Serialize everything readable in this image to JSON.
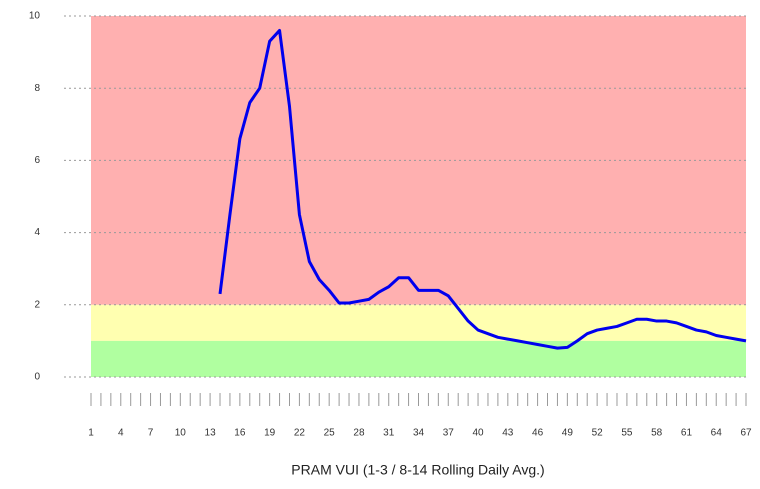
{
  "chart_data": {
    "type": "line",
    "title": "PRAM VUI (1-3 / 8-14 Rolling Daily Avg.)",
    "x": [
      1,
      2,
      3,
      4,
      5,
      6,
      7,
      8,
      9,
      10,
      11,
      12,
      13,
      14,
      15,
      16,
      17,
      18,
      19,
      20,
      21,
      22,
      23,
      24,
      25,
      26,
      27,
      28,
      29,
      30,
      31,
      32,
      33,
      34,
      35,
      36,
      37,
      38,
      39,
      40,
      41,
      42,
      43,
      44,
      45,
      46,
      47,
      48,
      49,
      50,
      51,
      52,
      53,
      54,
      55,
      56,
      57,
      58,
      59,
      60,
      61,
      62,
      63,
      64,
      65,
      66,
      67
    ],
    "series": [
      {
        "name": "PRAM VUI",
        "color": "#0000ee",
        "values": [
          null,
          null,
          null,
          null,
          null,
          null,
          null,
          null,
          null,
          null,
          null,
          null,
          null,
          2.3,
          4.5,
          6.6,
          7.6,
          8.0,
          9.3,
          9.6,
          7.5,
          4.5,
          3.2,
          2.7,
          2.4,
          2.05,
          2.05,
          2.1,
          2.15,
          2.35,
          2.5,
          2.75,
          2.75,
          2.4,
          2.4,
          2.4,
          2.25,
          1.9,
          1.55,
          1.3,
          1.2,
          1.1,
          1.05,
          1.0,
          0.95,
          0.9,
          0.85,
          0.8,
          0.82,
          1.0,
          1.2,
          1.3,
          1.35,
          1.4,
          1.5,
          1.6,
          1.6,
          1.55,
          1.55,
          1.5,
          1.4,
          1.3,
          1.25,
          1.15,
          1.1,
          1.05,
          1.0
        ]
      }
    ],
    "xlim": [
      1,
      67
    ],
    "xticks": [
      1,
      4,
      7,
      10,
      13,
      16,
      19,
      22,
      25,
      28,
      31,
      34,
      37,
      40,
      43,
      46,
      49,
      52,
      55,
      58,
      61,
      64,
      67
    ],
    "ylim": [
      0,
      10
    ],
    "yticks": [
      0,
      2,
      4,
      6,
      8,
      10
    ],
    "grid": true,
    "bands": [
      {
        "from": 2,
        "to": 10,
        "color": "#ffb0b0"
      },
      {
        "from": 1,
        "to": 2,
        "color": "#ffffb0"
      },
      {
        "from": 0,
        "to": 1,
        "color": "#b0ffa0"
      }
    ]
  }
}
